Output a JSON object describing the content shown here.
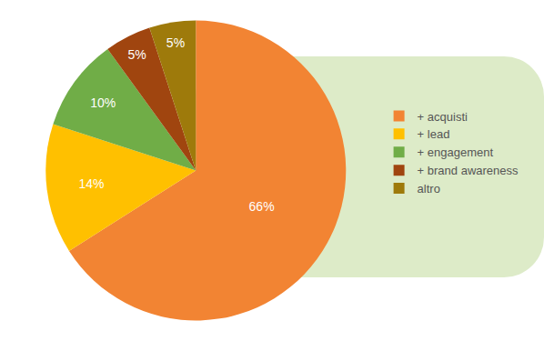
{
  "chart_data": {
    "type": "pie",
    "categories": [
      "+ acquisti",
      "+ lead",
      "+ engagement",
      "+ brand awareness",
      "altro"
    ],
    "values": [
      66,
      14,
      10,
      5,
      5
    ],
    "value_labels": [
      "66%",
      "14%",
      "10%",
      "5%",
      "5%"
    ],
    "colors": [
      "#F28433",
      "#FFC000",
      "#70AD47",
      "#A0450F",
      "#9E7A0B"
    ],
    "data_labels": true,
    "legend": "right"
  }
}
